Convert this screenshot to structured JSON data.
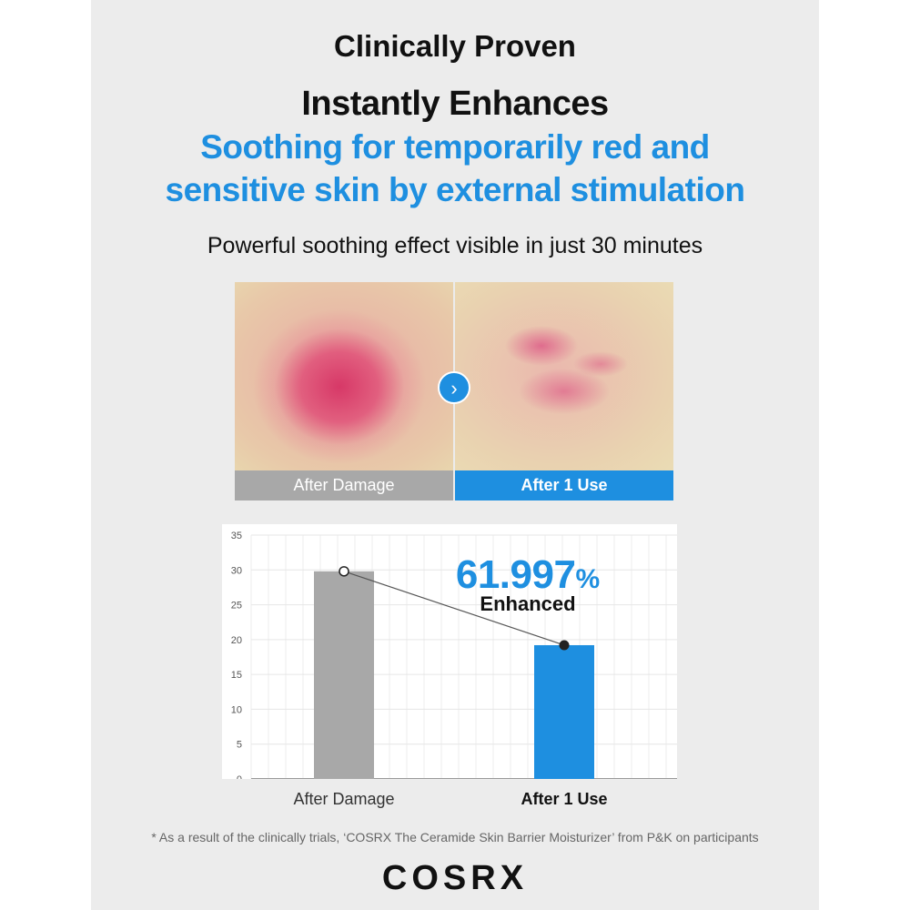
{
  "header": {
    "kicker": "Clinically Proven",
    "headline": "Instantly Enhances",
    "subhead_line1": "Soothing for temporarily red and",
    "subhead_line2": "sensitive skin by external stimulation",
    "lead": "Powerful soothing effect visible in just 30 minutes"
  },
  "photos": {
    "before_caption": "After Damage",
    "after_caption": "After 1 Use",
    "arrow_icon": "chevron-right-icon"
  },
  "stat": {
    "value": "61.997",
    "unit": "%",
    "label": "Enhanced"
  },
  "chart_data": {
    "type": "bar",
    "categories": [
      "After Damage",
      "After 1 Use"
    ],
    "values": [
      29.8,
      19.2
    ],
    "ylim": [
      0,
      35
    ],
    "yticks": [
      0,
      5,
      10,
      15,
      20,
      25,
      30,
      35
    ],
    "grid": true,
    "colors": [
      "#a8a8a8",
      "#1e8fe0"
    ]
  },
  "footnote": "* As a result of the clinically trials, ‘COSRX The Ceramide Skin Barrier Moisturizer’ from P&K on participants",
  "brand": "COSRX"
}
